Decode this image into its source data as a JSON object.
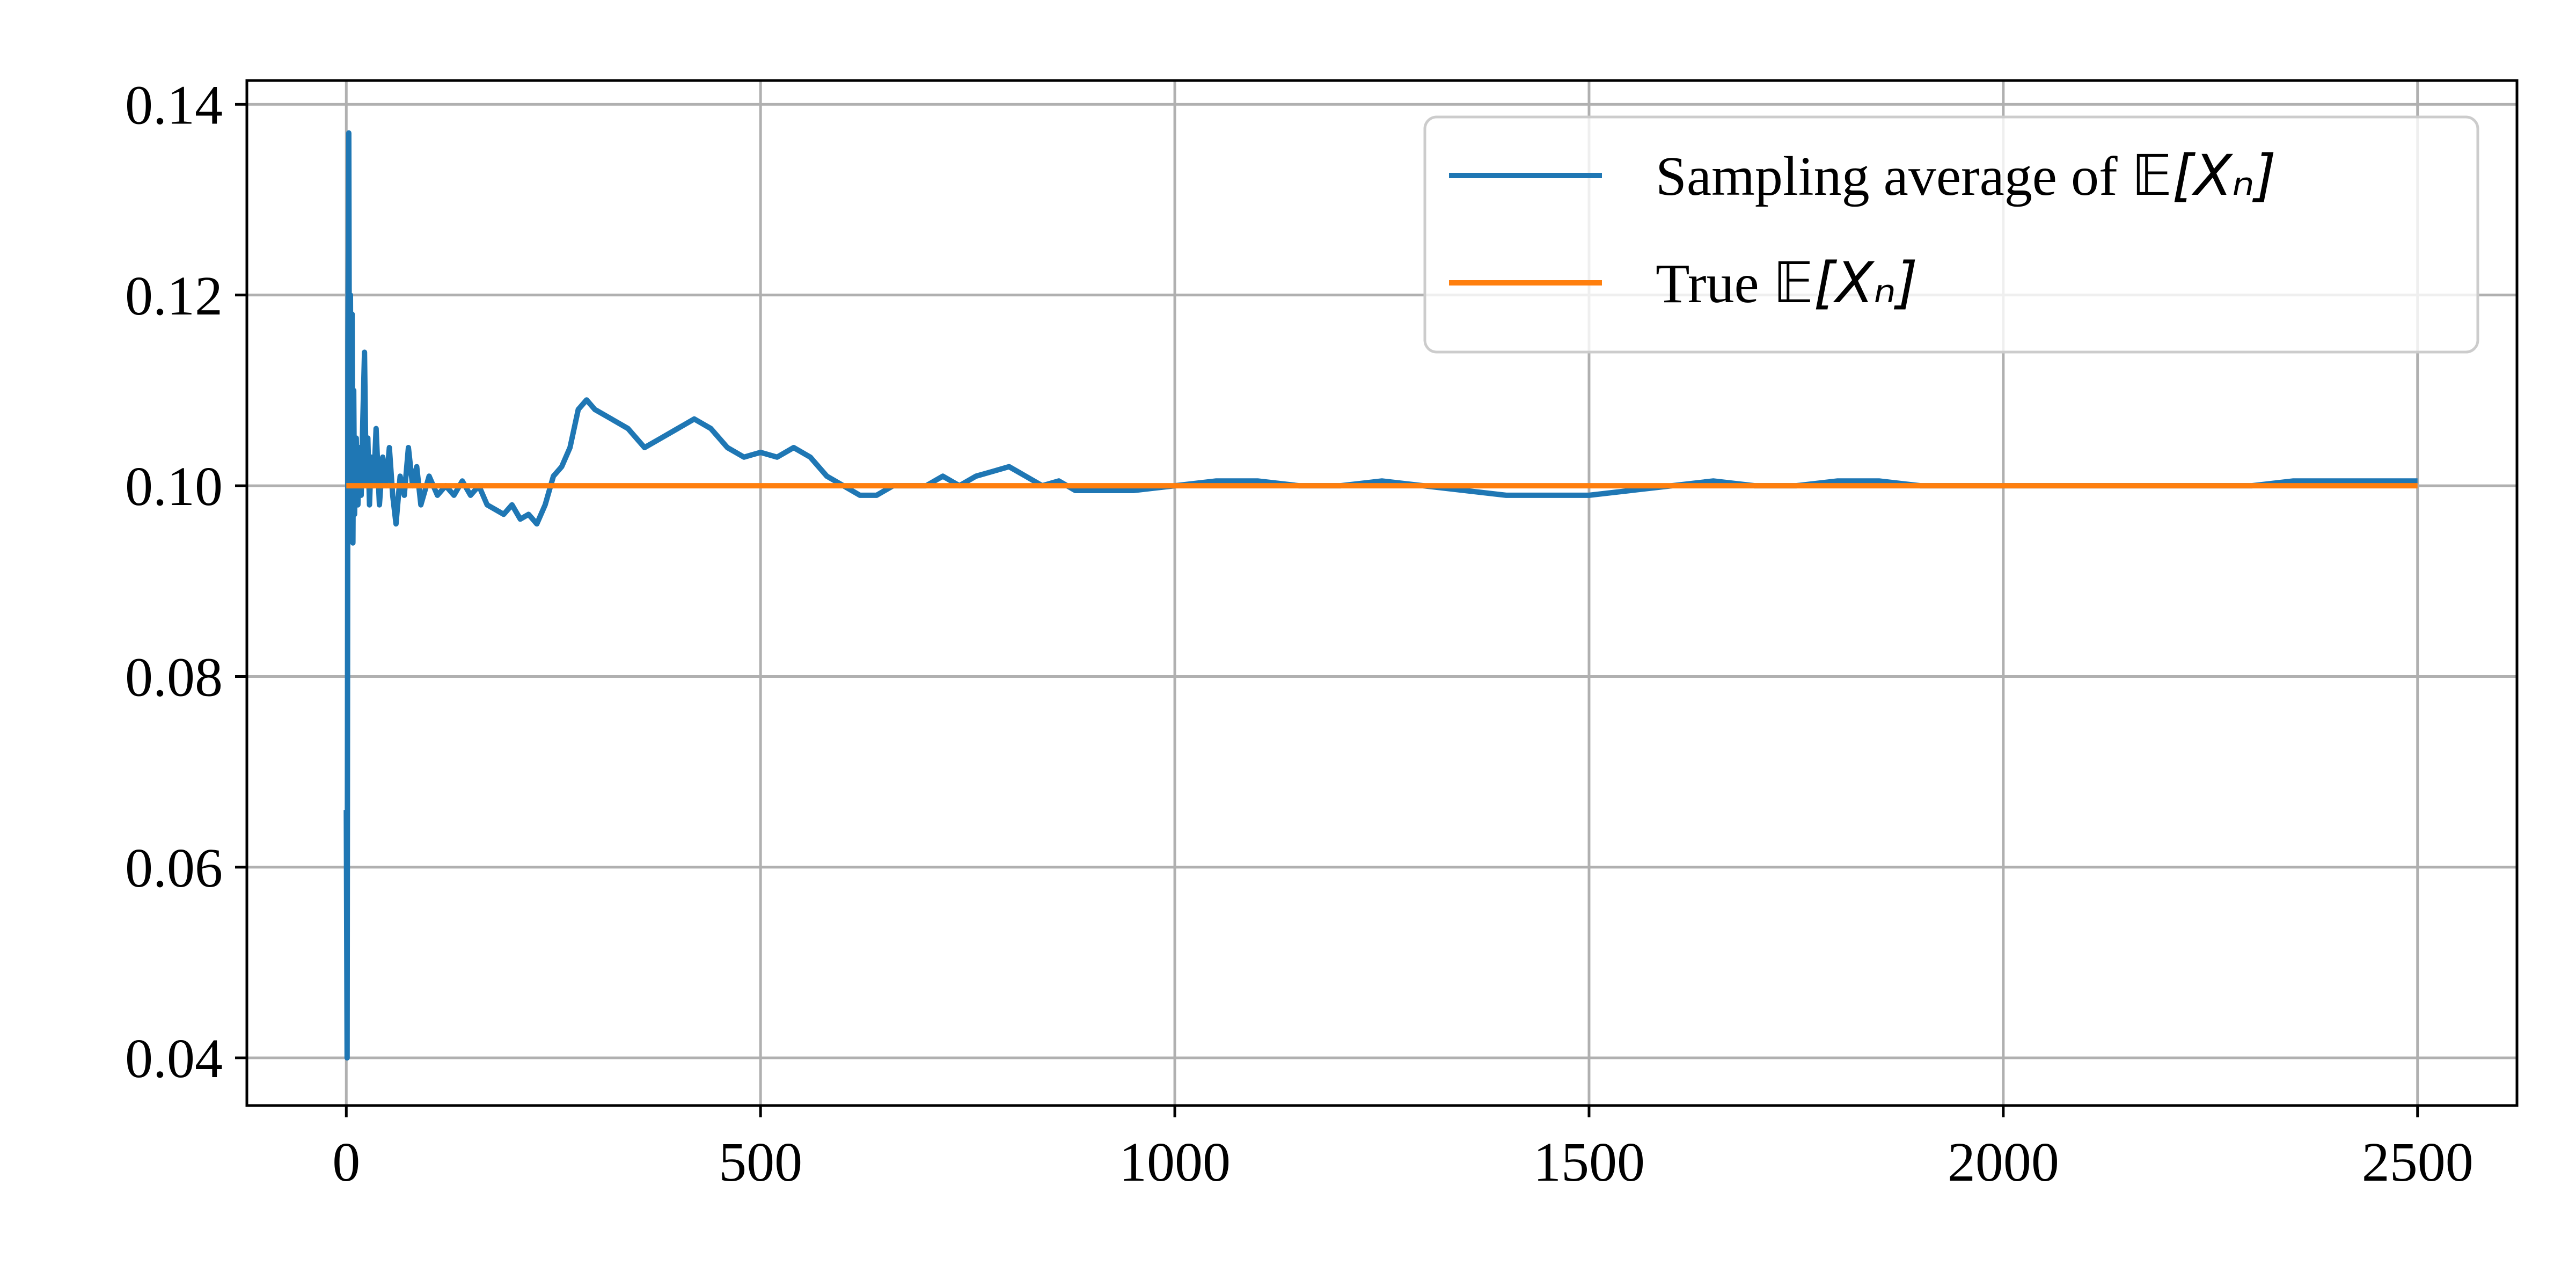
{
  "chart_data": {
    "type": "line",
    "title": "",
    "xlabel": "",
    "ylabel": "",
    "xlim": [
      -120,
      2620
    ],
    "ylim": [
      0.035,
      0.1425
    ],
    "grid": true,
    "legend_position": "top-right",
    "x_ticks": [
      0,
      500,
      1000,
      1500,
      2000,
      2500
    ],
    "y_ticks": [
      0.04,
      0.06,
      0.08,
      0.1,
      0.12,
      0.14
    ],
    "x_tick_labels": [
      "0",
      "500",
      "1000",
      "1500",
      "2000",
      "2500"
    ],
    "y_tick_labels": [
      "0.04",
      "0.06",
      "0.08",
      "0.10",
      "0.12",
      "0.14"
    ],
    "series": [
      {
        "name": "Sampling average of 𝔼[Xₙ]",
        "legend_prefix": "Sampling average of ",
        "legend_math": "𝔼[Xₙ]",
        "color": "#1f77b4",
        "points": [
          [
            0,
            0.066
          ],
          [
            1,
            0.04
          ],
          [
            2,
            0.115
          ],
          [
            3,
            0.137
          ],
          [
            4,
            0.1
          ],
          [
            5,
            0.12
          ],
          [
            6,
            0.096
          ],
          [
            7,
            0.118
          ],
          [
            8,
            0.094
          ],
          [
            9,
            0.11
          ],
          [
            10,
            0.097
          ],
          [
            12,
            0.105
          ],
          [
            14,
            0.098
          ],
          [
            16,
            0.104
          ],
          [
            18,
            0.099
          ],
          [
            20,
            0.107
          ],
          [
            22,
            0.114
          ],
          [
            24,
            0.1
          ],
          [
            26,
            0.105
          ],
          [
            28,
            0.098
          ],
          [
            30,
            0.103
          ],
          [
            33,
            0.1
          ],
          [
            36,
            0.106
          ],
          [
            40,
            0.098
          ],
          [
            44,
            0.103
          ],
          [
            48,
            0.1
          ],
          [
            52,
            0.104
          ],
          [
            56,
            0.099
          ],
          [
            60,
            0.096
          ],
          [
            65,
            0.101
          ],
          [
            70,
            0.099
          ],
          [
            75,
            0.104
          ],
          [
            80,
            0.1
          ],
          [
            85,
            0.102
          ],
          [
            90,
            0.098
          ],
          [
            100,
            0.101
          ],
          [
            110,
            0.099
          ],
          [
            120,
            0.1
          ],
          [
            130,
            0.099
          ],
          [
            140,
            0.1005
          ],
          [
            150,
            0.099
          ],
          [
            160,
            0.1
          ],
          [
            170,
            0.098
          ],
          [
            180,
            0.0975
          ],
          [
            190,
            0.097
          ],
          [
            200,
            0.098
          ],
          [
            210,
            0.0965
          ],
          [
            220,
            0.097
          ],
          [
            230,
            0.096
          ],
          [
            240,
            0.098
          ],
          [
            250,
            0.101
          ],
          [
            260,
            0.102
          ],
          [
            270,
            0.104
          ],
          [
            280,
            0.108
          ],
          [
            290,
            0.109
          ],
          [
            300,
            0.108
          ],
          [
            320,
            0.107
          ],
          [
            340,
            0.106
          ],
          [
            360,
            0.104
          ],
          [
            380,
            0.105
          ],
          [
            400,
            0.106
          ],
          [
            420,
            0.107
          ],
          [
            440,
            0.106
          ],
          [
            460,
            0.104
          ],
          [
            480,
            0.103
          ],
          [
            500,
            0.1035
          ],
          [
            520,
            0.103
          ],
          [
            540,
            0.104
          ],
          [
            560,
            0.103
          ],
          [
            580,
            0.101
          ],
          [
            600,
            0.1
          ],
          [
            620,
            0.099
          ],
          [
            640,
            0.099
          ],
          [
            660,
            0.1
          ],
          [
            680,
            0.1
          ],
          [
            700,
            0.1
          ],
          [
            720,
            0.101
          ],
          [
            740,
            0.1
          ],
          [
            760,
            0.101
          ],
          [
            780,
            0.1015
          ],
          [
            800,
            0.102
          ],
          [
            820,
            0.101
          ],
          [
            840,
            0.1
          ],
          [
            860,
            0.1005
          ],
          [
            880,
            0.0995
          ],
          [
            900,
            0.0995
          ],
          [
            950,
            0.0995
          ],
          [
            1000,
            0.1
          ],
          [
            1050,
            0.1005
          ],
          [
            1100,
            0.1005
          ],
          [
            1150,
            0.1
          ],
          [
            1200,
            0.1
          ],
          [
            1250,
            0.1005
          ],
          [
            1300,
            0.1
          ],
          [
            1350,
            0.0995
          ],
          [
            1400,
            0.099
          ],
          [
            1450,
            0.099
          ],
          [
            1500,
            0.099
          ],
          [
            1550,
            0.0995
          ],
          [
            1600,
            0.1
          ],
          [
            1650,
            0.1005
          ],
          [
            1700,
            0.1
          ],
          [
            1750,
            0.1
          ],
          [
            1800,
            0.1005
          ],
          [
            1850,
            0.1005
          ],
          [
            1900,
            0.1
          ],
          [
            1950,
            0.1
          ],
          [
            2000,
            0.1
          ],
          [
            2050,
            0.1
          ],
          [
            2100,
            0.1
          ],
          [
            2150,
            0.1
          ],
          [
            2200,
            0.1
          ],
          [
            2250,
            0.1
          ],
          [
            2300,
            0.1
          ],
          [
            2350,
            0.1005
          ],
          [
            2400,
            0.1005
          ],
          [
            2450,
            0.1005
          ],
          [
            2500,
            0.1005
          ]
        ]
      },
      {
        "name": "True 𝔼[Xₙ]",
        "legend_prefix": "True ",
        "legend_math": "𝔼[Xₙ]",
        "color": "#ff7f0e",
        "points": [
          [
            0,
            0.1
          ],
          [
            2500,
            0.1
          ]
        ]
      }
    ]
  }
}
